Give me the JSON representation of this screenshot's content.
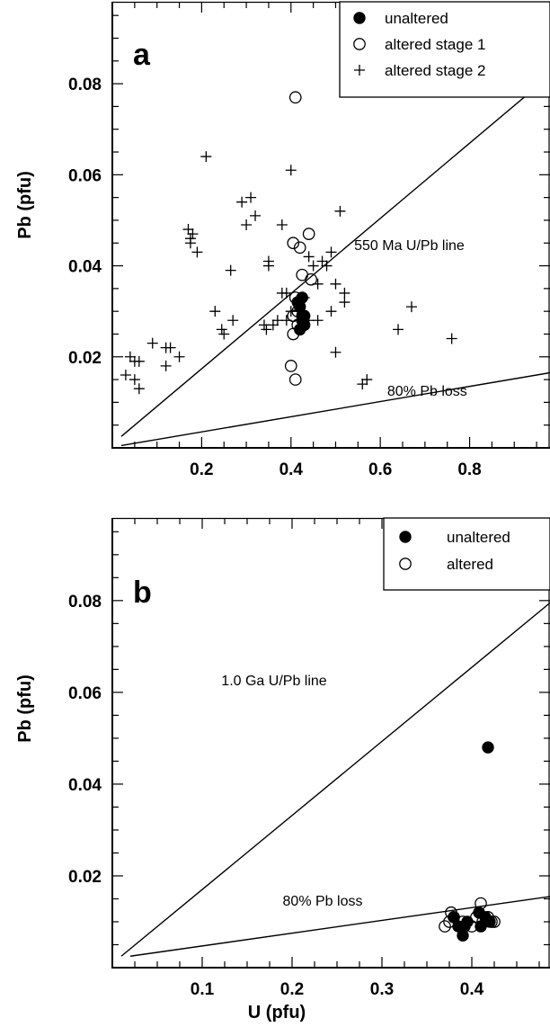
{
  "chart_data": [
    {
      "type": "scatter",
      "panel": "a",
      "xlabel": "",
      "ylabel": "Pb  (pfu)",
      "xlim": [
        0.0,
        0.98
      ],
      "ylim": [
        0.0,
        0.098
      ],
      "xticks": [
        0.2,
        0.4,
        0.6,
        0.8
      ],
      "xtick_labels": [
        "0.2",
        "0.4",
        "0.6",
        "0.8"
      ],
      "yticks": [
        0.02,
        0.04,
        0.06,
        0.08
      ],
      "ytick_labels": [
        "0.02",
        "0.04",
        "0.06",
        "0.08"
      ],
      "x_minor_step": 0.05,
      "y_minor_step": 0.005,
      "legend_position": "top-right",
      "grid": false,
      "series": [
        {
          "name": "unaltered",
          "marker": "filled-circle",
          "x": [
            0.415,
            0.425,
            0.42,
            0.43,
            0.425,
            0.43,
            0.42,
            0.425
          ],
          "y": [
            0.032,
            0.033,
            0.031,
            0.029,
            0.028,
            0.027,
            0.026,
            0.029
          ]
        },
        {
          "name": "altered stage 1",
          "marker": "open-circle",
          "x": [
            0.41,
            0.42,
            0.44,
            0.405,
            0.425,
            0.445,
            0.41,
            0.405,
            0.415,
            0.405,
            0.4,
            0.41,
            0.415
          ],
          "y": [
            0.077,
            0.044,
            0.047,
            0.045,
            0.038,
            0.037,
            0.033,
            0.029,
            0.027,
            0.025,
            0.018,
            0.015,
            0.03
          ]
        },
        {
          "name": "altered stage 2",
          "marker": "plus",
          "x": [
            0.04,
            0.05,
            0.06,
            0.03,
            0.05,
            0.06,
            0.09,
            0.12,
            0.13,
            0.12,
            0.15,
            0.17,
            0.175,
            0.18,
            0.175,
            0.19,
            0.21,
            0.23,
            0.245,
            0.25,
            0.265,
            0.27,
            0.29,
            0.31,
            0.3,
            0.32,
            0.34,
            0.345,
            0.35,
            0.35,
            0.36,
            0.37,
            0.38,
            0.39,
            0.4,
            0.4,
            0.39,
            0.44,
            0.45,
            0.46,
            0.47,
            0.48,
            0.49,
            0.5,
            0.51,
            0.52,
            0.52,
            0.46,
            0.49,
            0.5,
            0.56,
            0.57,
            0.64,
            0.67,
            0.76,
            0.38,
            0.44,
            0.43
          ],
          "y": [
            0.02,
            0.019,
            0.019,
            0.016,
            0.015,
            0.013,
            0.023,
            0.018,
            0.022,
            0.022,
            0.02,
            0.048,
            0.045,
            0.047,
            0.046,
            0.043,
            0.064,
            0.03,
            0.026,
            0.025,
            0.039,
            0.028,
            0.054,
            0.055,
            0.049,
            0.051,
            0.027,
            0.026,
            0.041,
            0.04,
            0.027,
            0.028,
            0.049,
            0.028,
            0.061,
            0.03,
            0.034,
            0.042,
            0.04,
            0.036,
            0.041,
            0.04,
            0.043,
            0.036,
            0.052,
            0.032,
            0.034,
            0.028,
            0.03,
            0.021,
            0.014,
            0.015,
            0.026,
            0.031,
            0.024,
            0.034,
            0.028,
            0.033
          ]
        }
      ],
      "reference_lines": [
        {
          "label": "550 Ma U/Pb line",
          "from": [
            0.02,
            0.0025
          ],
          "to": [
            0.94,
            0.0785
          ]
        },
        {
          "label": "80% Pb loss",
          "from": [
            0.02,
            0.0005
          ],
          "to": [
            0.98,
            0.0165
          ]
        }
      ],
      "annotations": [
        {
          "text": "550 Ma  U/Pb  line",
          "at": [
            0.665,
            0.0435
          ]
        },
        {
          "text": "80% Pb  loss",
          "at": [
            0.705,
            0.0115
          ]
        }
      ]
    },
    {
      "type": "scatter",
      "panel": "b",
      "xlabel": "U  (pfu)",
      "ylabel": "Pb  (pfu)",
      "xlim": [
        0.0,
        0.487
      ],
      "ylim": [
        0.0,
        0.098
      ],
      "xticks": [
        0.1,
        0.2,
        0.3,
        0.4
      ],
      "xtick_labels": [
        "0.1",
        "0.2",
        "0.3",
        "0.4"
      ],
      "yticks": [
        0.02,
        0.04,
        0.06,
        0.08
      ],
      "ytick_labels": [
        "0.02",
        "0.04",
        "0.06",
        "0.08"
      ],
      "x_minor_step": 0.025,
      "y_minor_step": 0.005,
      "legend_position": "top-right",
      "grid": false,
      "series": [
        {
          "name": "unaltered",
          "marker": "filled-circle",
          "x": [
            0.418,
            0.38,
            0.385,
            0.39,
            0.392,
            0.395,
            0.408,
            0.41,
            0.415,
            0.42
          ],
          "y": [
            0.048,
            0.011,
            0.009,
            0.007,
            0.009,
            0.01,
            0.012,
            0.009,
            0.011,
            0.01
          ]
        },
        {
          "name": "altered",
          "marker": "open-circle",
          "x": [
            0.37,
            0.375,
            0.377,
            0.38,
            0.39,
            0.4,
            0.405,
            0.41,
            0.412,
            0.418,
            0.422,
            0.425
          ],
          "y": [
            0.009,
            0.01,
            0.012,
            0.011,
            0.01,
            0.009,
            0.011,
            0.014,
            0.01,
            0.011,
            0.01,
            0.01
          ]
        }
      ],
      "reference_lines": [
        {
          "label": "1.0 Ga U/Pb line",
          "from": [
            0.01,
            0.0025
          ],
          "to": [
            0.487,
            0.0795
          ]
        },
        {
          "label": "80% Pb loss",
          "from": [
            0.02,
            0.0025
          ],
          "to": [
            0.487,
            0.0155
          ]
        }
      ],
      "annotations": [
        {
          "text": "1.0 Ga  U/Pb  line",
          "at": [
            0.18,
            0.0615
          ]
        },
        {
          "text": "80% Pb  loss",
          "at": [
            0.234,
            0.0135
          ]
        }
      ]
    }
  ]
}
